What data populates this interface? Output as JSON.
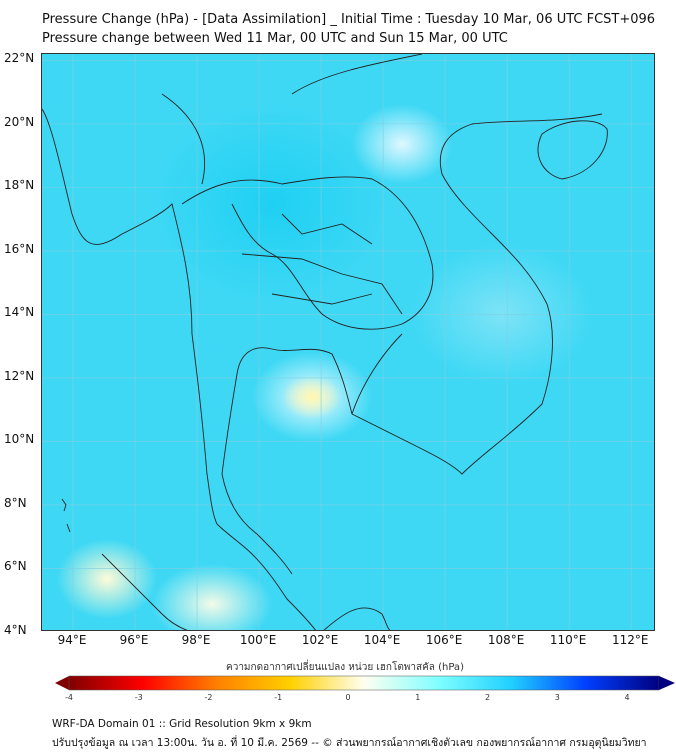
{
  "title": {
    "line1": "Pressure Change (hPa) - [Data Assimilation] _ Initial Time : Tuesday 10 Mar, 06 UTC FCST+096",
    "line2": "Pressure change between Wed 11 Mar, 00 UTC and Sun 15 Mar, 00 UTC"
  },
  "map": {
    "lat_labels": [
      "22°N",
      "20°N",
      "18°N",
      "16°N",
      "14°N",
      "12°N",
      "10°N",
      "8°N",
      "6°N",
      "4°N"
    ],
    "lon_labels": [
      "94°E",
      "96°E",
      "98°E",
      "100°E",
      "102°E",
      "104°E",
      "106°E",
      "108°E",
      "110°E",
      "112°E"
    ],
    "lat_range": [
      4,
      22
    ],
    "lon_range": [
      93,
      112.8
    ]
  },
  "colorbar": {
    "label": "ความกดอากาศเปลี่ยนแปลง หน่วย เฮกโตพาสคัล (hPa)",
    "ticks": [
      "-4",
      "-3",
      "-2",
      "-1",
      "0",
      "1",
      "2",
      "3",
      "4"
    ],
    "range": [
      -4,
      4
    ],
    "colors": [
      "#800000",
      "#ff0000",
      "#ff8000",
      "#ffd000",
      "#fffff0",
      "#80ffff",
      "#20d0ff",
      "#0040ff",
      "#000080"
    ]
  },
  "footer": {
    "line1": "WRF-DA Domain 01 :: Grid Resolution 9km x 9km",
    "line2": "ปรับปรุงข้อมูล ณ เวลา 13:00น. วัน อ. ที่ 10 มี.ค. 2569 -- © ส่วนพยากรณ์อากาศเชิงตัวเลข กองพยากรณ์อากาศ กรมอุตุนิยมวิทยา"
  }
}
